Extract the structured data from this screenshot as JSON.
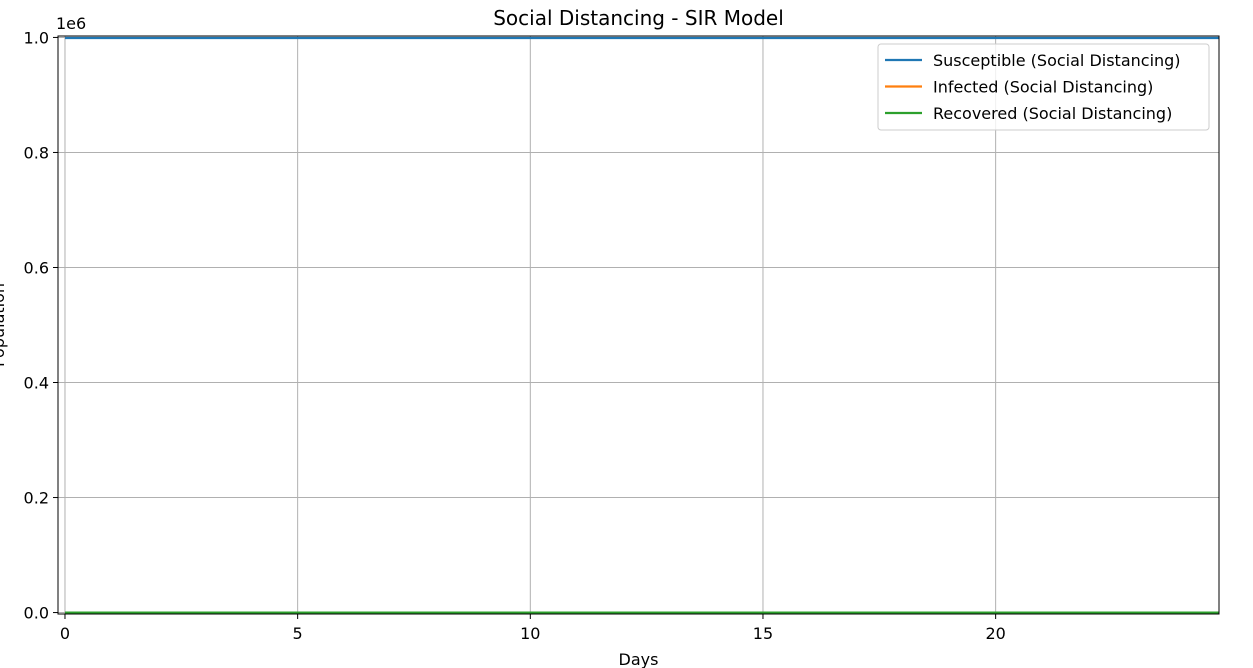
{
  "chart_data": {
    "type": "line",
    "title": "Social Distancing - SIR Model",
    "xlabel": "Days",
    "ylabel": "Population",
    "offset_text": "1e6",
    "xlim": [
      -0.15,
      24.8
    ],
    "ylim": [
      -0.0025,
      1.0025
    ],
    "xticks": [
      0,
      5,
      10,
      15,
      20
    ],
    "xtick_labels": [
      "0",
      "5",
      "10",
      "15",
      "20"
    ],
    "yticks": [
      0.0,
      0.2,
      0.4,
      0.6,
      0.8,
      1.0
    ],
    "ytick_labels": [
      "0.0",
      "0.2",
      "0.4",
      "0.6",
      "0.8",
      "1.0"
    ],
    "grid": true,
    "legend_position": "top-right",
    "x": [
      0,
      5,
      10,
      15,
      20,
      24.8
    ],
    "series": [
      {
        "name": "Susceptible (Social Distancing)",
        "color": "#1f77b4",
        "values": [
          0.999,
          0.999,
          0.999,
          0.999,
          0.999,
          0.999
        ]
      },
      {
        "name": "Infected (Social Distancing)",
        "color": "#ff7f0e",
        "values": [
          1e-06,
          1e-06,
          1e-06,
          1e-06,
          1e-06,
          1e-06
        ]
      },
      {
        "name": "Recovered (Social Distancing)",
        "color": "#2ca02c",
        "values": [
          0.0,
          0.0,
          0.0,
          0.0,
          0.0,
          0.0
        ]
      }
    ]
  }
}
